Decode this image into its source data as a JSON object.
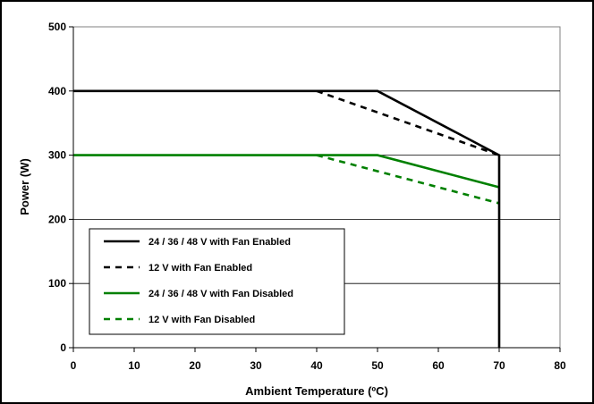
{
  "chart_data": {
    "type": "line",
    "xlabel": "Ambient Temperature (ºC)",
    "ylabel": "Power (W)",
    "xlim": [
      0,
      80
    ],
    "ylim": [
      0,
      500
    ],
    "x_ticks": [
      "0",
      "10",
      "20",
      "30",
      "40",
      "50",
      "60",
      "70",
      "80"
    ],
    "y_ticks": [
      "0",
      "100",
      "200",
      "300",
      "400",
      "500"
    ],
    "grid": "horizontal",
    "legend_position": "bottom-left",
    "series": [
      {
        "name": "24 / 36 / 48 V with Fan Enabled",
        "color": "#000000",
        "dash": "solid",
        "points": [
          [
            0,
            400
          ],
          [
            50,
            400
          ],
          [
            70,
            300
          ],
          [
            70,
            0
          ]
        ]
      },
      {
        "name": "12 V with Fan Enabled",
        "color": "#000000",
        "dash": "dashed",
        "points": [
          [
            40,
            400
          ],
          [
            70,
            300
          ]
        ]
      },
      {
        "name": "24 / 36 / 48 V with Fan Disabled",
        "color": "#008000",
        "dash": "solid",
        "points": [
          [
            0,
            300
          ],
          [
            50,
            300
          ],
          [
            70,
            250
          ]
        ]
      },
      {
        "name": "12 V with Fan Disabled",
        "color": "#008000",
        "dash": "dashed",
        "points": [
          [
            40,
            300
          ],
          [
            70,
            225
          ]
        ]
      }
    ]
  }
}
